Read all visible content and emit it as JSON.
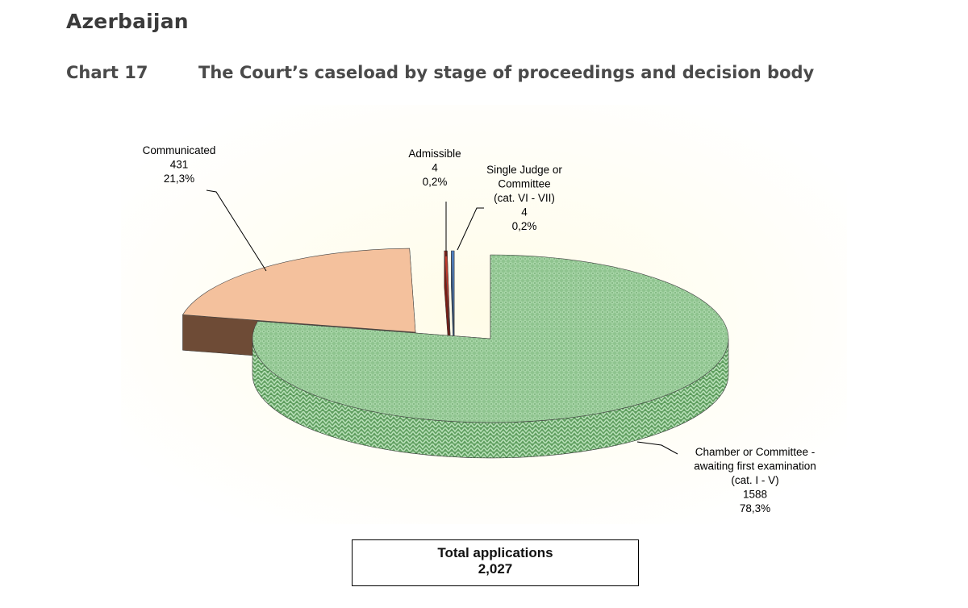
{
  "header": {
    "country": "Azerbaijan",
    "chart_number": "Chart 17",
    "chart_title": "The Court’s caseload by stage of proceedings and decision body"
  },
  "chart_data": {
    "type": "pie",
    "title": "The Court’s caseload by stage of proceedings and decision body",
    "slices": [
      {
        "label_lines": [
          "Chamber or Committee -",
          "awaiting first examination",
          "(cat. I - V)"
        ],
        "value": 1588,
        "value_label": "1588",
        "percent": "78,3%",
        "color": "#8fc48f",
        "side_color": "#5a9a5a"
      },
      {
        "label_lines": [
          "Communicated"
        ],
        "value": 431,
        "value_label": "431",
        "percent": "21,3%",
        "color": "#f4c19d",
        "side_color": "#6e4b36"
      },
      {
        "label_lines": [
          "Admissible"
        ],
        "value": 4,
        "value_label": "4",
        "percent": "0,2%",
        "color": "#c0392b",
        "side_color": "#7b1d14"
      },
      {
        "label_lines": [
          "Single Judge or",
          "Committee",
          "(cat. VI - VII)"
        ],
        "value": 4,
        "value_label": "4",
        "percent": "0,2%",
        "color": "#4f7fbf",
        "side_color": "#2c4f80"
      }
    ],
    "total": {
      "label": "Total applications",
      "value": "2,027"
    },
    "background_color": "#fffbe6"
  }
}
